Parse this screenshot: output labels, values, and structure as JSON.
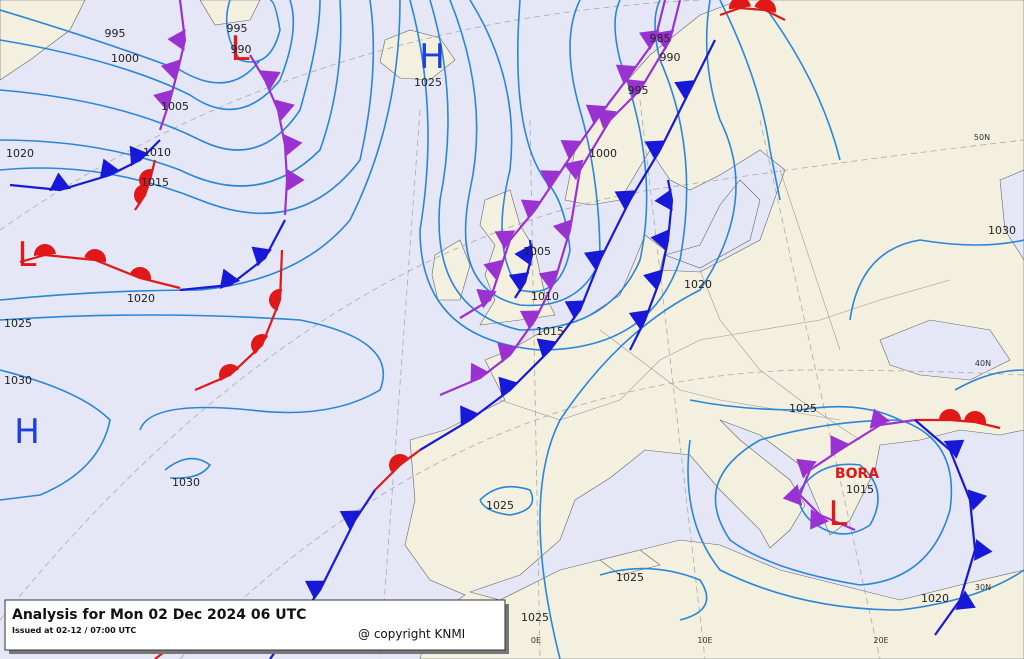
{
  "header": {
    "title": "Analysis for Mon 02 Dec 2024 06 UTC",
    "issued": "Issued at 02-12 / 07:00 UTC",
    "copyright": "@ copyright KNMI"
  },
  "pressure_centers": [
    "H",
    "H",
    "L",
    "L",
    "L"
  ],
  "storm_name": "BORA",
  "isobar_labels": [
    "995",
    "1000",
    "1005",
    "1010",
    "1015",
    "1020",
    "1020",
    "1025",
    "1030",
    "1030",
    "995",
    "990",
    "1025",
    "985",
    "990",
    "995",
    "1000",
    "1005",
    "1010",
    "1015",
    "1020",
    "1030",
    "1025",
    "1015",
    "1025",
    "1025",
    "1025",
    "1020"
  ],
  "graticule_labels": [
    "50N",
    "40N",
    "30N",
    "0E",
    "10E",
    "20E"
  ]
}
